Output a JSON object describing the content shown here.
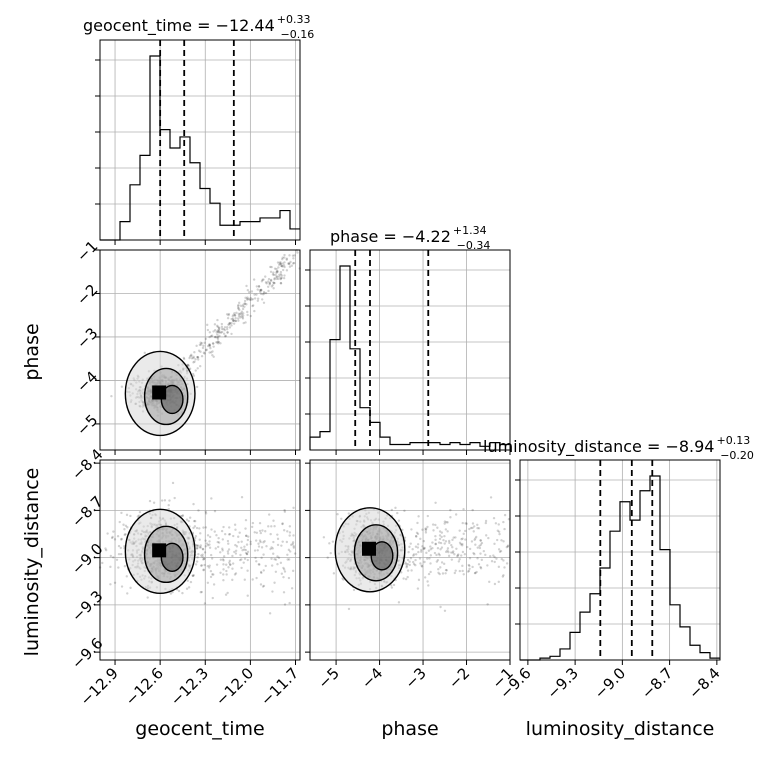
{
  "chart_data": {
    "type": "corner",
    "parameters": [
      "geocent_time",
      "phase",
      "luminosity_distance"
    ],
    "quantile_lines": "dashed at 16%, 50%, 84%",
    "grid": true,
    "titles": {
      "geocent_time": {
        "label": "geocent_time",
        "median": "−12.44",
        "plus": "+0.33",
        "minus": "−0.16"
      },
      "phase": {
        "label": "phase",
        "median": "−4.22",
        "plus": "+1.34",
        "minus": "−0.34"
      },
      "luminosity_distance": {
        "label": "luminosity_distance",
        "median": "−8.94",
        "plus": "+0.13",
        "minus": "−0.20"
      }
    },
    "axes": {
      "geocent_time": {
        "range": [
          -13.0,
          -11.67
        ],
        "ticks": [
          -12.9,
          -12.6,
          -12.3,
          -12.0,
          -11.7
        ],
        "tick_labels": [
          "−12.9",
          "−12.6",
          "−12.3",
          "−12.0",
          "−11.7"
        ]
      },
      "phase": {
        "range": [
          -5.6,
          -1.0
        ],
        "ticks": [
          -5,
          -4,
          -3,
          -2,
          -1
        ],
        "tick_labels": [
          "−5",
          "−4",
          "−3",
          "−2",
          "−1"
        ]
      },
      "luminosity_distance": {
        "range": [
          -9.65,
          -8.38
        ],
        "ticks": [
          -9.6,
          -9.3,
          -9.0,
          -8.7,
          -8.4
        ],
        "tick_labels": [
          "−9.6",
          "−9.3",
          "−9.0",
          "−8.7",
          "−8.4"
        ]
      }
    },
    "histograms": {
      "geocent_time": {
        "edges_start": -13.0,
        "bin_width": 0.0665,
        "counts": [
          0,
          0,
          0.1,
          0.3,
          0.46,
          1.0,
          0.6,
          0.5,
          0.56,
          0.42,
          0.28,
          0.2,
          0.08,
          0.08,
          0.1,
          0.1,
          0.12,
          0.12,
          0.16,
          0.06
        ],
        "quantiles": [
          -12.6,
          -12.44,
          -12.11
        ]
      },
      "phase": {
        "edges_start": -5.6,
        "bin_width": 0.23,
        "counts": [
          0.07,
          0.1,
          0.6,
          1.0,
          0.55,
          0.23,
          0.15,
          0.07,
          0.03,
          0.03,
          0.04,
          0.04,
          0.04,
          0.03,
          0.04,
          0.03,
          0.04,
          0.02,
          0.04,
          0.03
        ],
        "quantiles": [
          -4.56,
          -4.22,
          -2.88
        ]
      },
      "luminosity_distance": {
        "edges_start": -9.65,
        "bin_width": 0.0635,
        "counts": [
          0.0,
          0.0,
          0.01,
          0.02,
          0.06,
          0.15,
          0.26,
          0.36,
          0.5,
          0.7,
          0.86,
          0.76,
          0.92,
          1.0,
          0.6,
          0.3,
          0.18,
          0.08,
          0.04,
          0.01
        ],
        "quantiles": [
          -9.14,
          -8.94,
          -8.81
        ]
      }
    },
    "pair_panels": [
      {
        "x": "geocent_time",
        "y": "phase",
        "peak": [
          -12.6,
          -4.3
        ],
        "spread": [
          0.08,
          0.18
        ],
        "correlation": "strong positive, tail to (-11.7, -1.1)"
      },
      {
        "x": "geocent_time",
        "y": "luminosity_distance",
        "peak": [
          -12.6,
          -8.96
        ],
        "spread": [
          0.15,
          0.12
        ]
      },
      {
        "x": "phase",
        "y": "luminosity_distance",
        "peak": [
          -4.22,
          -8.95
        ],
        "spread": [
          0.35,
          0.11
        ]
      }
    ]
  }
}
